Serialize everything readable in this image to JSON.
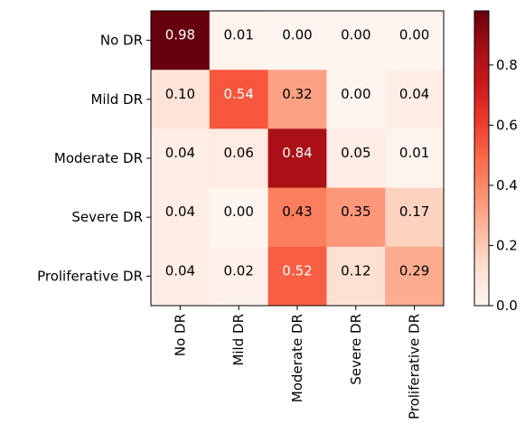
{
  "chart_data": {
    "type": "heatmap",
    "title": "",
    "xlabel": "",
    "ylabel": "",
    "rows": [
      "No DR",
      "Mild DR",
      "Moderate DR",
      "Severe DR",
      "Proliferative DR"
    ],
    "columns": [
      "No DR",
      "Mild DR",
      "Moderate DR",
      "Severe DR",
      "Proliferative DR"
    ],
    "values": [
      [
        0.98,
        0.01,
        0.0,
        0.0,
        0.0
      ],
      [
        0.1,
        0.54,
        0.32,
        0.0,
        0.04
      ],
      [
        0.04,
        0.06,
        0.84,
        0.05,
        0.01
      ],
      [
        0.04,
        0.0,
        0.43,
        0.35,
        0.17
      ],
      [
        0.04,
        0.02,
        0.52,
        0.12,
        0.29
      ]
    ],
    "cell_labels": [
      [
        "0.98",
        "0.01",
        "0.00",
        "0.00",
        "0.00"
      ],
      [
        "0.10",
        "0.54",
        "0.32",
        "0.00",
        "0.04"
      ],
      [
        "0.04",
        "0.06",
        "0.84",
        "0.05",
        "0.01"
      ],
      [
        "0.04",
        "0.00",
        "0.43",
        "0.35",
        "0.17"
      ],
      [
        "0.04",
        "0.02",
        "0.52",
        "0.12",
        "0.29"
      ]
    ],
    "colorbar": {
      "colormap": "Reds",
      "range": [
        0.0,
        0.98
      ],
      "ticks": [
        0.0,
        0.2,
        0.4,
        0.6,
        0.8
      ],
      "tick_labels": [
        "0.0",
        "0.2",
        "0.4",
        "0.6",
        "0.8"
      ]
    },
    "grid": false,
    "legend": "none"
  }
}
